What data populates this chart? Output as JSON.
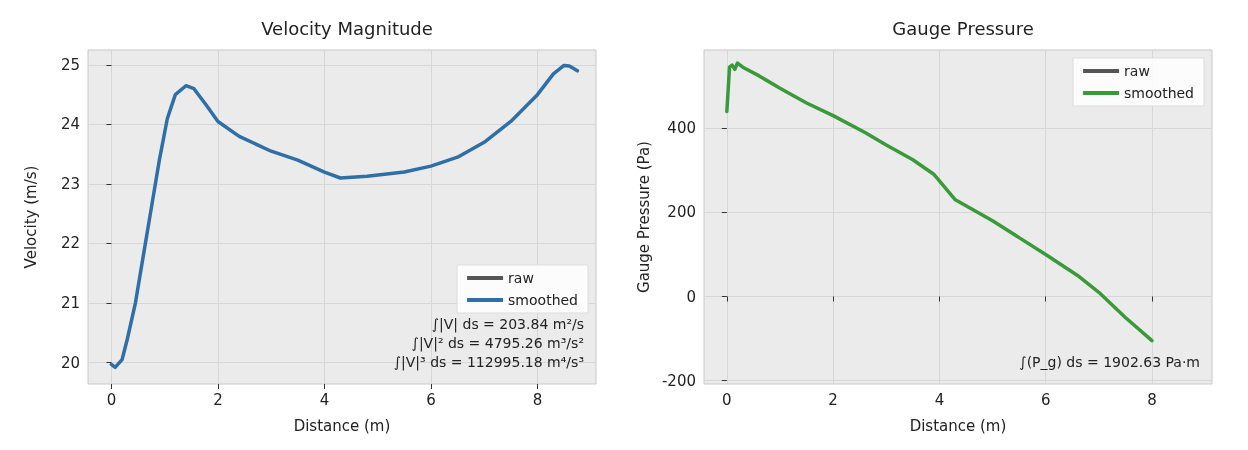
{
  "chart_data": [
    {
      "type": "line",
      "title": "Velocity Magnitude",
      "xlabel": "Distance (m)",
      "ylabel": "Velocity (m/s)",
      "xlim": [
        -0.44,
        9.1
      ],
      "xticks": [
        0,
        2,
        4,
        6,
        8
      ],
      "ylim": [
        19.64,
        25.25
      ],
      "yticks": [
        20,
        21,
        22,
        23,
        24,
        25
      ],
      "grid": true,
      "legend": "bottom right",
      "x": [
        0,
        0.07,
        0.2,
        0.3,
        0.45,
        0.6,
        0.75,
        0.9,
        1.05,
        1.2,
        1.4,
        1.55,
        1.8,
        2.0,
        2.4,
        3.0,
        3.5,
        4.0,
        4.3,
        4.8,
        5.5,
        6.0,
        6.5,
        7.0,
        7.5,
        8.0,
        8.3,
        8.5,
        8.6,
        8.75
      ],
      "series": [
        {
          "name": "raw",
          "color": "#555555",
          "line_style": "dashed",
          "values": [
            null,
            null,
            null,
            null,
            null,
            null,
            null,
            null,
            null,
            null,
            null,
            null,
            null,
            null,
            null,
            null,
            null,
            null,
            null,
            null,
            null,
            null,
            null,
            null,
            null,
            null,
            null,
            null,
            null,
            null
          ]
        },
        {
          "name": "smoothed",
          "color": "#2f6fa7",
          "line_style": "solid",
          "values": [
            19.97,
            19.92,
            20.05,
            20.4,
            21.0,
            21.8,
            22.6,
            23.4,
            24.1,
            24.5,
            24.65,
            24.6,
            24.3,
            24.05,
            23.8,
            23.55,
            23.4,
            23.2,
            23.1,
            23.13,
            23.2,
            23.3,
            23.45,
            23.7,
            24.05,
            24.5,
            24.85,
            24.99,
            24.98,
            24.9
          ]
        }
      ],
      "annotations": [
        "∫|V| ds = 203.84 m²/s",
        "∫|V|² ds = 4795.26 m³/s²",
        "∫|V|³ ds = 112995.18 m⁴/s³"
      ]
    },
    {
      "type": "line",
      "title": "Gauge Pressure",
      "xlabel": "Distance (m)",
      "ylabel": "Gauge Pressure (Pa)",
      "xlim": [
        -0.43,
        9.13
      ],
      "xticks": [
        0,
        2,
        4,
        6,
        8
      ],
      "ylim": [
        -208,
        586
      ],
      "yticks": [
        -200,
        0,
        200,
        400
      ],
      "grid": true,
      "legend": "top right",
      "x": [
        0,
        0.05,
        0.1,
        0.15,
        0.2,
        0.3,
        0.6,
        1,
        1.5,
        2,
        2.6,
        3,
        3.5,
        3.9,
        4,
        4.3,
        5,
        5.5,
        6,
        6.6,
        7,
        7.5,
        8
      ],
      "series": [
        {
          "name": "raw",
          "color": "#555555",
          "line_style": "dashed",
          "values": [
            null,
            null,
            null,
            null,
            null,
            null,
            null,
            null,
            null,
            null,
            null,
            null,
            null,
            null,
            null,
            null,
            null,
            null,
            null,
            null,
            null,
            null,
            null
          ]
        },
        {
          "name": "smoothed",
          "color": "#3a9a3a",
          "line_style": "solid",
          "values": [
            440,
            545,
            550,
            540,
            555,
            545,
            525,
            495,
            460,
            430,
            390,
            360,
            325,
            290,
            275,
            230,
            180,
            140,
            100,
            50,
            10,
            -50,
            -105
          ]
        }
      ],
      "annotations": [
        "∫(P_g) ds = 1902.63 Pa·m"
      ]
    }
  ]
}
